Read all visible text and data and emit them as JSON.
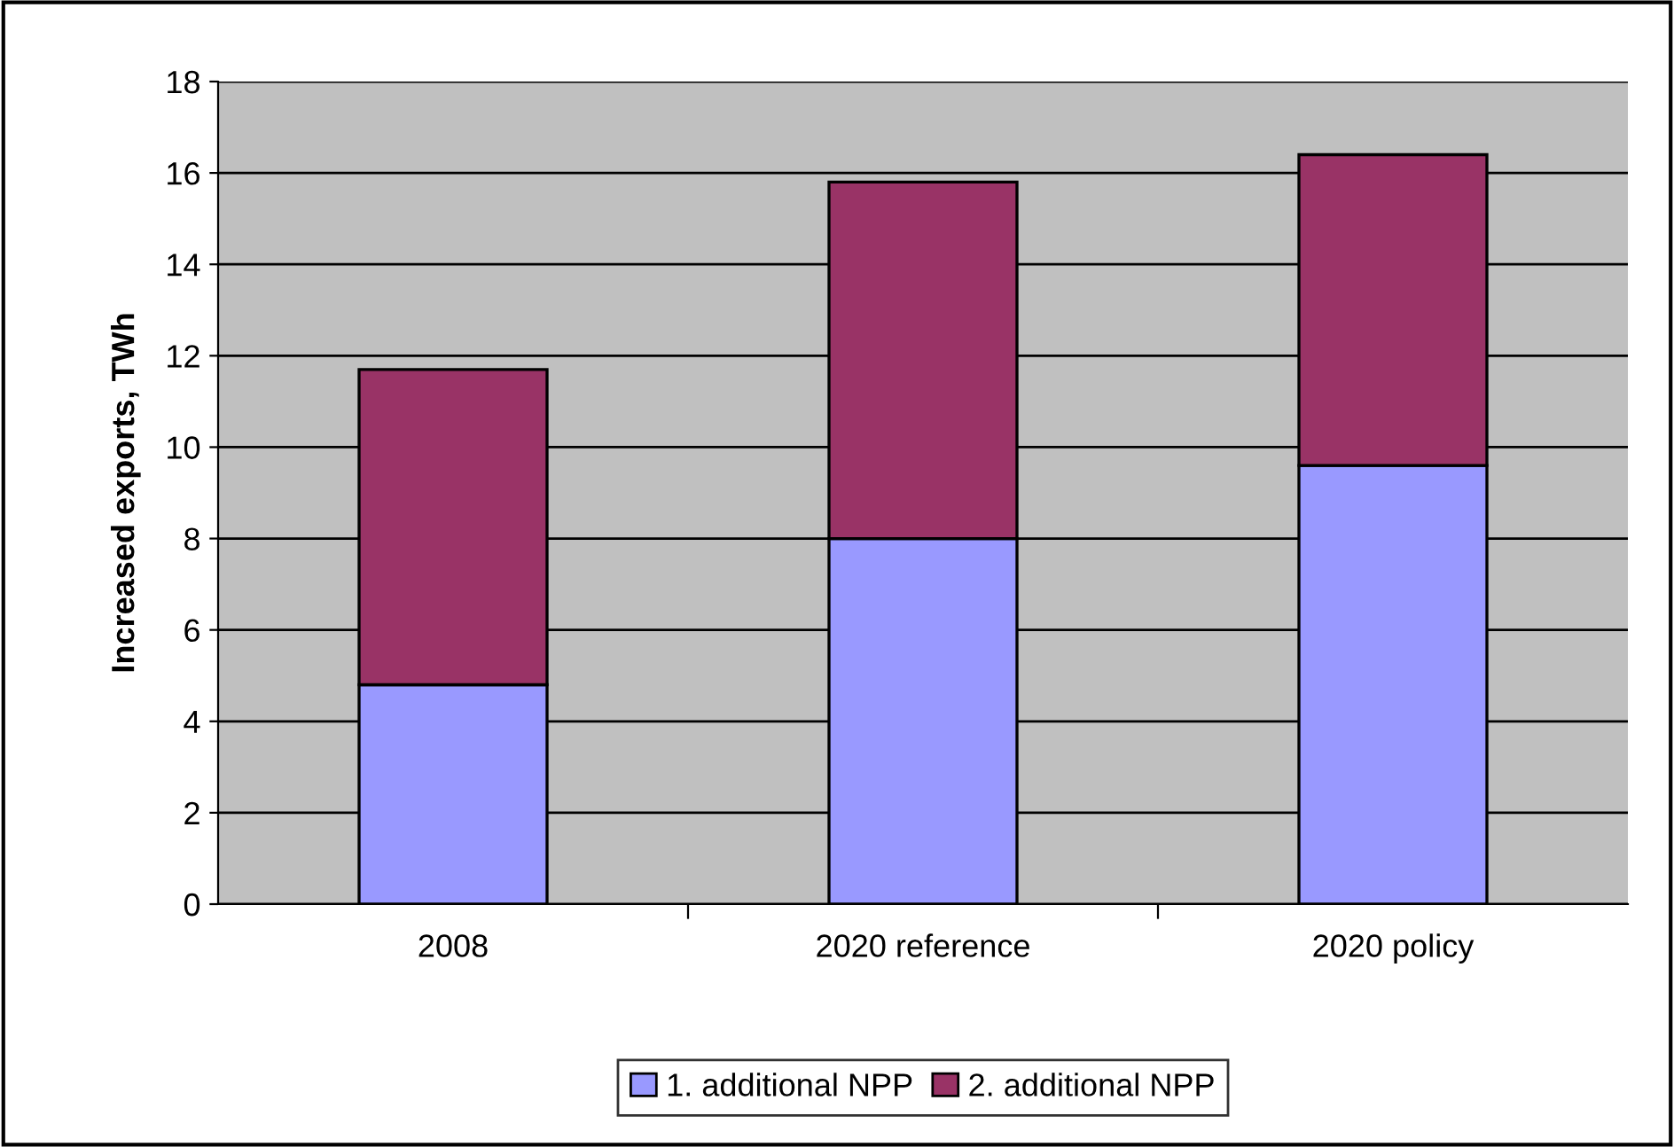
{
  "chart_data": {
    "type": "bar",
    "stacked": true,
    "ylabel": "Increased exports, TWh",
    "categories": [
      "2008",
      "2020 reference",
      "2020 policy"
    ],
    "series": [
      {
        "name": "1. additional NPP",
        "color": "#9999ff",
        "values": [
          4.8,
          8.0,
          9.6
        ]
      },
      {
        "name": "2. additional NPP",
        "color": "#993366",
        "values": [
          6.9,
          7.8,
          6.8
        ]
      }
    ],
    "ylim": [
      0,
      18
    ],
    "yticks": [
      0,
      2,
      4,
      6,
      8,
      10,
      12,
      14,
      16,
      18
    ],
    "grid": "y",
    "legend": "bottom"
  }
}
